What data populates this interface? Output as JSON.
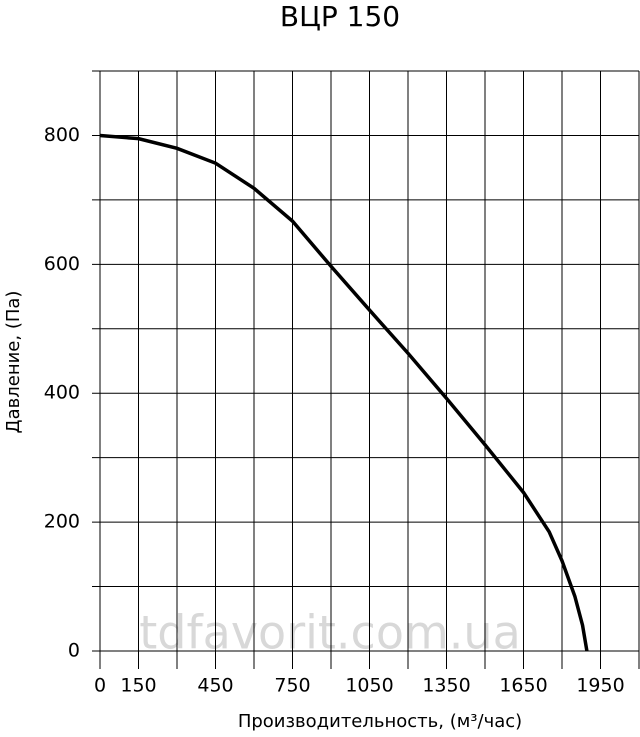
{
  "chart_data": {
    "type": "line",
    "title": "ВЦР 150",
    "x_label": "Производительность, (м³/час)",
    "y_label": "Давление, (Па)",
    "watermark": "tdfavorit.com.ua",
    "x": [
      0,
      150,
      300,
      450,
      600,
      750,
      900,
      1050,
      1200,
      1350,
      1500,
      1650,
      1750,
      1800,
      1850,
      1880,
      1897
    ],
    "series": [
      {
        "color": "#000000",
        "values": [
          800,
          795,
          780,
          757,
          718,
          667,
          597,
          529,
          462,
          392,
          320,
          246,
          185,
          140,
          85,
          40,
          0
        ]
      }
    ],
    "xlim": [
      0,
      2100
    ],
    "ylim": [
      0,
      900
    ],
    "xticks": [
      0,
      150,
      450,
      750,
      1050,
      1350,
      1650,
      1950
    ],
    "yticks": [
      0,
      200,
      400,
      600,
      800
    ],
    "x_grid": [
      0,
      150,
      300,
      450,
      600,
      750,
      900,
      1050,
      1200,
      1350,
      1500,
      1650,
      1800,
      1950,
      2100
    ],
    "y_grid": [
      0,
      100,
      200,
      300,
      400,
      500,
      600,
      700,
      800,
      900
    ]
  }
}
